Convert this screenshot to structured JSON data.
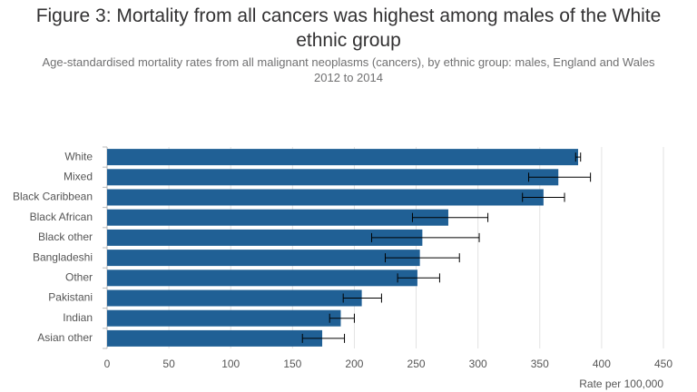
{
  "chart_data": {
    "type": "hbar",
    "title": "Figure 3: Mortality from all cancers was highest among males of the White ethnic group",
    "subtitle": "Age-standardised mortality rates from all malignant neoplasms (cancers), by ethnic group: males, England and Wales 2012 to 2014",
    "x_label": "Rate per 100,000",
    "categories": [
      "White",
      "Mixed",
      "Black Caribbean",
      "Black African",
      "Black other",
      "Bangladeshi",
      "Other",
      "Pakistani",
      "Indian",
      "Asian other"
    ],
    "values": [
      381,
      365,
      353,
      276,
      255,
      253,
      251,
      206,
      189,
      174
    ],
    "error_low": [
      379,
      341,
      336,
      247,
      214,
      225,
      235,
      191,
      180,
      158
    ],
    "error_high": [
      383,
      391,
      370,
      308,
      301,
      285,
      269,
      222,
      200,
      192
    ],
    "color": "#206095",
    "xlim": [
      0,
      450
    ],
    "xticks": [
      0,
      50,
      100,
      150,
      200,
      250,
      300,
      350,
      400,
      450
    ],
    "grid": true
  }
}
